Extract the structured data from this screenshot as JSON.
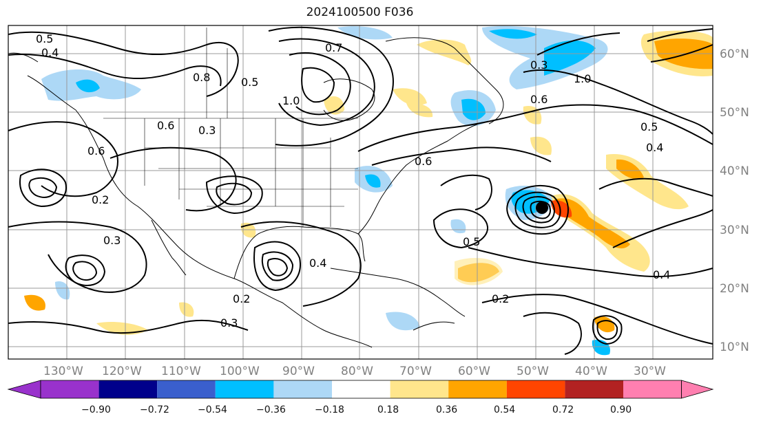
{
  "title": "2024100500 F036",
  "map": {
    "lon_labels": [
      "130°W",
      "120°W",
      "110°W",
      "100°W",
      "90°W",
      "80°W",
      "70°W",
      "60°W",
      "50°W",
      "40°W",
      "30°W"
    ],
    "lat_labels": [
      "60°N",
      "50°N",
      "40°N",
      "30°N",
      "20°N",
      "10°N"
    ]
  },
  "contour_labels": [
    "0.5",
    "0.4",
    "0.8",
    "0.6",
    "0.3",
    "0.2",
    "0.7",
    "1.0",
    "0.5",
    "0.6",
    "0.4",
    "0.3",
    "0.2",
    "0.4",
    "0.5",
    "0.2",
    "0.3",
    "0.6",
    "0.5",
    "0.4",
    "1.0",
    "0.3",
    "0.6"
  ],
  "colorbar": {
    "ticks": [
      "−0.90",
      "−0.72",
      "−0.54",
      "−0.36",
      "−0.18",
      "0.18",
      "0.36",
      "0.54",
      "0.72",
      "0.90"
    ],
    "colors": [
      "#9932cc",
      "#00008b",
      "#3a5fcd",
      "#00bfff",
      "#add8f6",
      "#ffffff",
      "#ffe68c",
      "#ffa500",
      "#ff4500",
      "#b22222",
      "#ff7fb0"
    ]
  },
  "colors": {
    "blue_light": "#add8f6",
    "blue_mid": "#00bfff",
    "yellow": "#ffe68c",
    "orange": "#ffa500",
    "red": "#ff4500",
    "grid": "#999999"
  }
}
